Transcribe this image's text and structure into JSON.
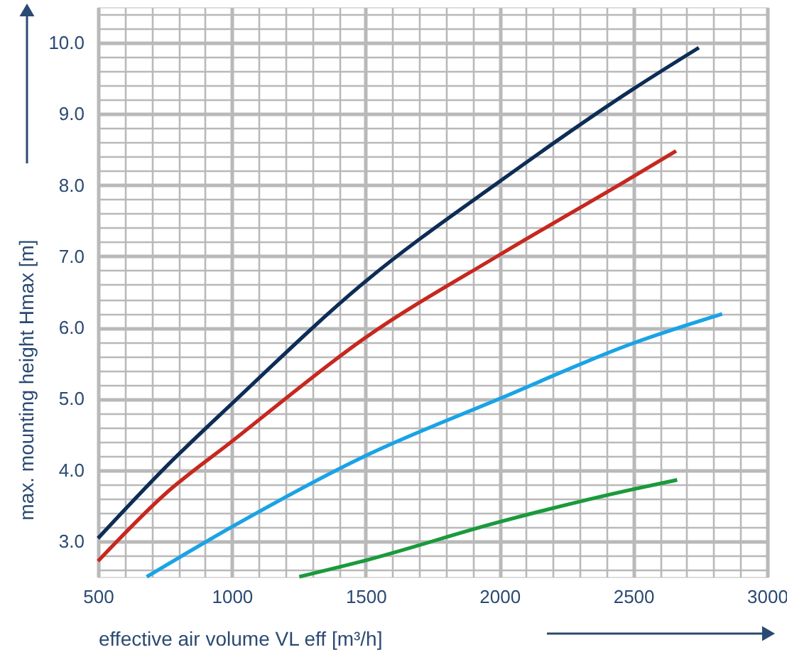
{
  "chart_data": {
    "type": "line",
    "xlabel": "effective air volume VL eff  [m³/h]",
    "ylabel": "max. mounting height Hmax [m]",
    "xlim": [
      500,
      3000
    ],
    "xticks": [
      500,
      1000,
      1500,
      2000,
      2500,
      3000
    ],
    "ylim": [
      2.5,
      10.5
    ],
    "yticks": [
      {
        "value": 3,
        "label": "3.0"
      },
      {
        "value": 4,
        "label": "4.0"
      },
      {
        "value": 5,
        "label": "5.0"
      },
      {
        "value": 6,
        "label": "6.0"
      },
      {
        "value": 7,
        "label": "7.0"
      },
      {
        "value": 8,
        "label": "8.0"
      },
      {
        "value": 9,
        "label": "9.0"
      },
      {
        "value": 10,
        "label": "10.0"
      }
    ],
    "grid": true,
    "marker": "none",
    "line_style": "solid",
    "series": [
      {
        "color": "#0d2d57",
        "x": [
          500,
          750,
          1000,
          1500,
          2000,
          2500,
          2745
        ],
        "values": [
          3.04,
          4.03,
          4.93,
          6.65,
          8.05,
          9.35,
          9.93
        ]
      },
      {
        "color": "#c6281f",
        "x": [
          500,
          750,
          1000,
          1500,
          2000,
          2500,
          2660
        ],
        "values": [
          2.72,
          3.66,
          4.4,
          5.86,
          7.02,
          8.12,
          8.48
        ]
      },
      {
        "color": "#1aa3e6",
        "x": [
          682,
          1000,
          1500,
          2000,
          2500,
          2832
        ],
        "values": [
          2.5,
          3.2,
          4.2,
          5.0,
          5.78,
          6.19
        ]
      },
      {
        "color": "#1a9a3c",
        "x": [
          1252,
          1500,
          2000,
          2500,
          2664
        ],
        "values": [
          2.5,
          2.73,
          3.27,
          3.73,
          3.86
        ]
      }
    ]
  }
}
